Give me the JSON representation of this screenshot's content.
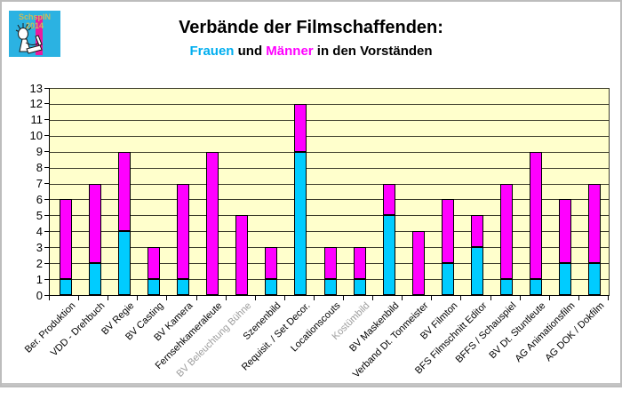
{
  "logo": {
    "text": "SchspIN 2014",
    "bg_color": "#2BB2E2",
    "stripe_color": "#EB1A9E",
    "text_color": "#C6BB5E"
  },
  "header": {
    "title": "Verbände der Filmschaffenden:",
    "subtitle_parts": [
      {
        "text": "Frauen",
        "color": "#00AEEF"
      },
      {
        "text": " und ",
        "color": "#000000"
      },
      {
        "text": "Männer",
        "color": "#FF00FF"
      },
      {
        "text": " in den Vorständen",
        "color": "#000000"
      }
    ]
  },
  "chart_data": {
    "type": "bar",
    "stacked": true,
    "title": "Verbände der Filmschaffenden: Frauen und Männer in den Vorständen",
    "categories": [
      {
        "label": "Ber. Produktion",
        "muted": false
      },
      {
        "label": "VDD - Drehbuch",
        "muted": false
      },
      {
        "label": "BV Regie",
        "muted": false
      },
      {
        "label": "BV Casting",
        "muted": false
      },
      {
        "label": "BV Kamera",
        "muted": false
      },
      {
        "label": "Fernsehkameraleute",
        "muted": false
      },
      {
        "label": "BV Beleuchtung Bühne",
        "muted": true
      },
      {
        "label": "Szenenbild",
        "muted": false
      },
      {
        "label": "Requisit. / Set Decor.",
        "muted": false
      },
      {
        "label": "Locationscouts",
        "muted": false
      },
      {
        "label": "Kostümbild",
        "muted": true
      },
      {
        "label": "BV Maskenbild",
        "muted": false
      },
      {
        "label": "Verband Dt. Tonmeister",
        "muted": false
      },
      {
        "label": "BV Filmton",
        "muted": false
      },
      {
        "label": "BFS Filmschnitt Editor",
        "muted": false
      },
      {
        "label": "BFFS / Schauspiel",
        "muted": false
      },
      {
        "label": "BV Dt. Stuntleute",
        "muted": false
      },
      {
        "label": "AG Animationsfilm",
        "muted": false
      },
      {
        "label": "AG DOK / Dokfilm",
        "muted": false
      }
    ],
    "series": [
      {
        "name": "Frauen",
        "color": "#00CCFF",
        "values": [
          1,
          2,
          4,
          1,
          1,
          0,
          0,
          1,
          9,
          1,
          1,
          5,
          0,
          2,
          3,
          1,
          1,
          2,
          2
        ]
      },
      {
        "name": "Männer",
        "color": "#FF00FF",
        "values": [
          5,
          5,
          5,
          2,
          6,
          9,
          5,
          2,
          3,
          2,
          2,
          2,
          4,
          4,
          2,
          6,
          8,
          4,
          5
        ]
      }
    ],
    "totals": [
      6,
      7,
      9,
      3,
      7,
      9,
      5,
      3,
      12,
      3,
      3,
      7,
      4,
      6,
      5,
      7,
      9,
      6,
      7
    ],
    "ylim": [
      0,
      13
    ],
    "yticks": [
      0,
      1,
      2,
      3,
      4,
      5,
      6,
      7,
      8,
      9,
      10,
      11,
      12,
      13
    ],
    "grid": true,
    "legend": "none",
    "plot_bg": "#FFFFCC",
    "gridline_color": "#3E3E2C",
    "axis_color": "#000000",
    "label_color": "#000000",
    "muted_label_color": "#9C9C9C"
  }
}
